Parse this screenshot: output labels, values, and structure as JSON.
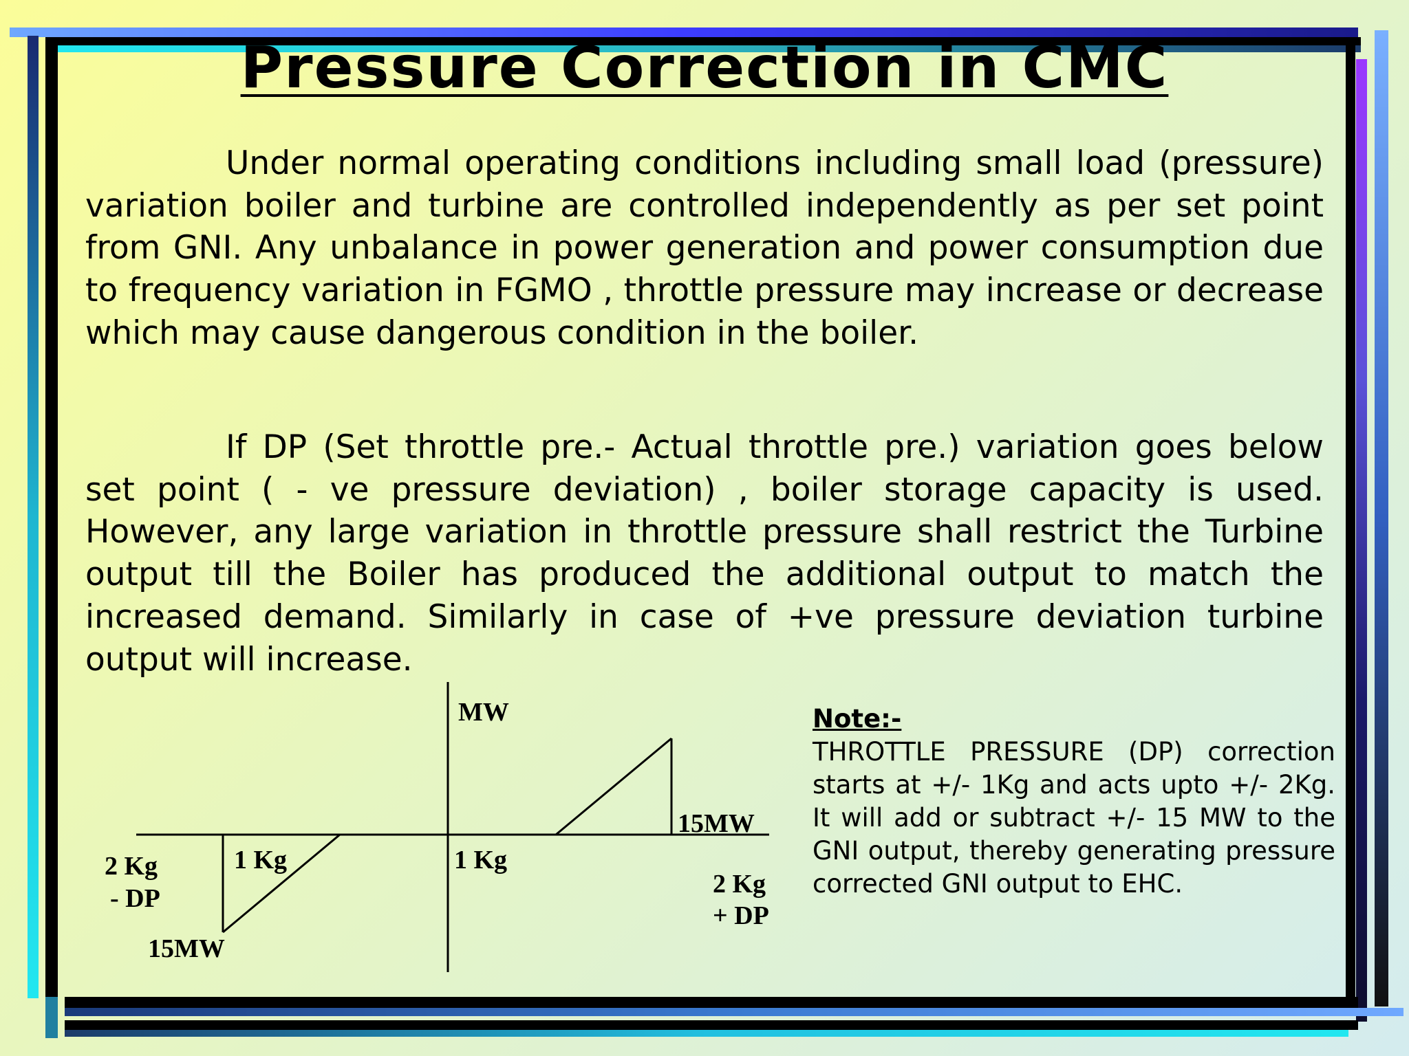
{
  "title": "Pressure Correction in CMC",
  "paragraphs": [
    "Under normal operating conditions including small load (pressure) variation boiler and turbine are controlled independently as per set point from GNI. Any unbalance in power generation and power consumption due to frequency variation in FGMO , throttle pressure may increase or decrease which may cause dangerous condition in the boiler.",
    "If DP  (Set throttle pre.- Actual throttle pre.) variation goes  below set point ( - ve pressure deviation) , boiler storage capacity is used. However, any large variation in throttle pressure shall restrict the Turbine output till the Boiler has produced the additional output to match the increased demand. Similarly in case of +ve pressure deviation turbine output will increase."
  ],
  "diagram": {
    "y_axis_label": "MW",
    "pos_top_label": "15MW",
    "neg_bottom_label": "15MW",
    "neg_1kg_label": "1 Kg",
    "pos_1kg_label": "1 Kg",
    "neg_2kg_label": "2 Kg",
    "neg_dp_label": "- DP",
    "pos_2kg_label": "2 Kg",
    "pos_dp_label": "+ DP"
  },
  "note": {
    "heading": "Note:-",
    "body": "THROTTLE PRESSURE (DP) correction starts at +/- 1Kg and acts upto  +/- 2Kg. It will add or subtract +/- 15 MW to the GNI output, thereby generating pressure corrected GNI output to EHC."
  }
}
